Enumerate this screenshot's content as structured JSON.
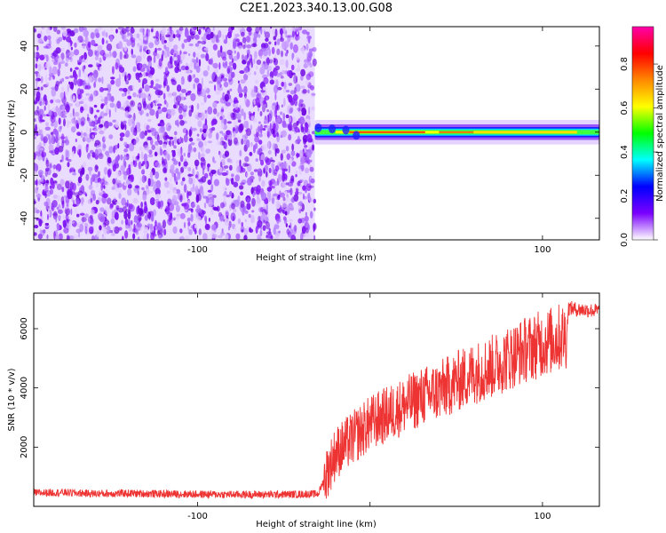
{
  "title": "C2E1.2023.340.13.00.G08",
  "colors": {
    "snr_line": "#ee3333",
    "frame": "#000000",
    "background": "#ffffff"
  },
  "chart_data": [
    {
      "type": "heatmap",
      "xlabel": "Height of straight line (km)",
      "ylabel": "Frequency (Hz)",
      "xlim": [
        -195,
        133
      ],
      "ylim": [
        -50,
        49
      ],
      "xticks": [
        -100,
        0,
        100
      ],
      "xtick_labels": [
        "-100",
        "",
        "100"
      ],
      "yticks": [
        -40,
        -20,
        0,
        20,
        40
      ],
      "ytick_labels": [
        "-40",
        "-20",
        "0",
        "20",
        "40"
      ],
      "noise_region_x": [
        -195,
        -32
      ],
      "signal_band": {
        "x": [
          -32,
          133
        ],
        "freq_center": 0,
        "half_width_hz": 3
      },
      "colorbar": {
        "label": "Normalized spectral amplitude",
        "range": [
          0.0,
          0.97
        ],
        "ticks": [
          0.0,
          0.2,
          0.4,
          0.6,
          0.8
        ],
        "tick_labels": [
          "0.0",
          "0.2",
          "0.4",
          "0.6",
          "0.8"
        ],
        "colormap": [
          "#ffffff",
          "#7a00ff",
          "#0000ff",
          "#00ffff",
          "#00ff00",
          "#ffff00",
          "#ff8800",
          "#ff0000",
          "#ff00aa"
        ]
      },
      "grid": false
    },
    {
      "type": "line",
      "xlabel": "Height of straight line (km)",
      "ylabel": "SNR (10 * v/v)",
      "xlim": [
        -195,
        133
      ],
      "ylim": [
        0,
        7200
      ],
      "xticks": [
        -100,
        0,
        100
      ],
      "xtick_labels": [
        "-100",
        "",
        "100"
      ],
      "yticks": [
        2000,
        4000,
        6000
      ],
      "ytick_labels": [
        "2000",
        "4000",
        "6000"
      ],
      "grid": false,
      "series": [
        {
          "x": [
            -195,
            -180,
            -160,
            -140,
            -120,
            -100,
            -80,
            -60,
            -40,
            -30,
            -26,
            -20,
            -10,
            0,
            10,
            20,
            30,
            40,
            50,
            60,
            70,
            80,
            90,
            100,
            110,
            114,
            115,
            120,
            133
          ],
          "y": [
            450,
            470,
            430,
            440,
            420,
            410,
            400,
            400,
            410,
            420,
            1000,
            1800,
            2300,
            2800,
            3100,
            3400,
            3700,
            3900,
            4200,
            4500,
            4700,
            5000,
            5300,
            5500,
            5700,
            5800,
            6700,
            6650,
            6600
          ]
        }
      ]
    }
  ]
}
